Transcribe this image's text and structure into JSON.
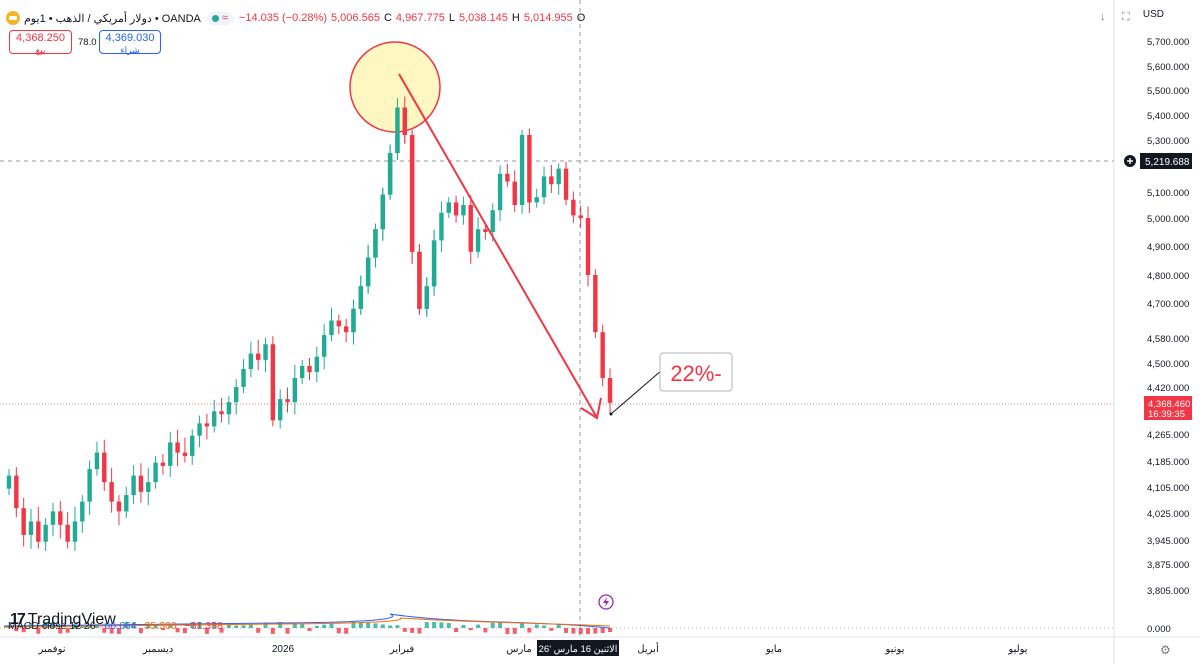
{
  "header": {
    "title": "دولار أمريكي / الذهب • 1يوم • OANDA",
    "change": "−14.035 (−0.28%)",
    "close_val": "5,006.565",
    "close_lab": "C",
    "low_val": "4,967.775",
    "low_lab": "L",
    "high_val": "5,038.145",
    "high_lab": "H",
    "open_val": "5,014.955",
    "open_lab": "O",
    "wave_icon": "≈"
  },
  "trade": {
    "sell_price": "4,368.250",
    "sell_label": "بيع",
    "spread": "78.0",
    "buy_price": "4,369.030",
    "buy_label": "شراء"
  },
  "currency": "USD",
  "toolbar_icons": [
    "download-arrow-icon",
    "fullscreen-icon"
  ],
  "price_axis": {
    "ticks": [
      {
        "v": 5700,
        "t": "5,700.000"
      },
      {
        "v": 5600,
        "t": "5,600.000"
      },
      {
        "v": 5500,
        "t": "5,500.000"
      },
      {
        "v": 5400,
        "t": "5,400.000"
      },
      {
        "v": 5300,
        "t": "5,300.000"
      },
      {
        "v": 5100,
        "t": "5,100.000"
      },
      {
        "v": 5000,
        "t": "5,000.000"
      },
      {
        "v": 4900,
        "t": "4,900.000"
      },
      {
        "v": 4800,
        "t": "4,800.000"
      },
      {
        "v": 4700,
        "t": "4,700.000"
      },
      {
        "v": 4580,
        "t": "4,580.000"
      },
      {
        "v": 4500,
        "t": "4,500.000"
      },
      {
        "v": 4420,
        "t": "4,420.000"
      },
      {
        "v": 4265,
        "t": "4,265.000"
      },
      {
        "v": 4185,
        "t": "4,185.000"
      },
      {
        "v": 4105,
        "t": "4,105.000"
      },
      {
        "v": 4025,
        "t": "4,025.000"
      },
      {
        "v": 3945,
        "t": "3,945.000"
      },
      {
        "v": 3875,
        "t": "3,875.000"
      },
      {
        "v": 3805,
        "t": "3,805.000"
      }
    ],
    "crosshair_price": "5,219.688",
    "last_price": "4,368.460",
    "countdown": "16:39:35",
    "macd_zero": "0.000"
  },
  "time_axis": {
    "labels": [
      "نوفمبر",
      "ديسمبر",
      "2026",
      "فبراير",
      "مارس",
      "أبريل",
      "مايو",
      "يونيو",
      "يوليو"
    ],
    "crosshair_date": "الاثنين 16 مارس '26"
  },
  "annotation": {
    "text": "22%-"
  },
  "logo": {
    "brand": "TradingView",
    "mark": "17"
  },
  "macd": {
    "name": "MACD close 12 26",
    "v1": "66.664",
    "v2": "35.306",
    "v3": "−31.358"
  },
  "colors": {
    "up": "#22ab94",
    "down": "#f23645",
    "accent": "#2962ff",
    "circle_fill": "#fff7c2"
  },
  "chart_data": {
    "type": "candlestick",
    "symbol": "دولار أمريكي / الذهب",
    "ohlc_close_pairs": [
      [
        4100,
        4140
      ],
      [
        4140,
        4040
      ],
      [
        4040,
        3960
      ],
      [
        3960,
        4000
      ],
      [
        4000,
        3940
      ],
      [
        3940,
        3990
      ],
      [
        3990,
        4030
      ],
      [
        4030,
        3990
      ],
      [
        3990,
        3940
      ],
      [
        3940,
        4000
      ],
      [
        4000,
        4060
      ],
      [
        4060,
        4160
      ],
      [
        4160,
        4210
      ],
      [
        4210,
        4120
      ],
      [
        4120,
        4060
      ],
      [
        4060,
        4030
      ],
      [
        4030,
        4080
      ],
      [
        4080,
        4140
      ],
      [
        4140,
        4090
      ],
      [
        4090,
        4120
      ],
      [
        4120,
        4180
      ],
      [
        4180,
        4170
      ],
      [
        4170,
        4240
      ],
      [
        4240,
        4210
      ],
      [
        4210,
        4200
      ],
      [
        4200,
        4260
      ],
      [
        4260,
        4300
      ],
      [
        4300,
        4290
      ],
      [
        4290,
        4340
      ],
      [
        4340,
        4330
      ],
      [
        4330,
        4370
      ],
      [
        4370,
        4420
      ],
      [
        4420,
        4480
      ],
      [
        4480,
        4530
      ],
      [
        4530,
        4510
      ],
      [
        4510,
        4560
      ],
      [
        4560,
        4310
      ],
      [
        4310,
        4380
      ],
      [
        4380,
        4370
      ],
      [
        4370,
        4450
      ],
      [
        4450,
        4490
      ],
      [
        4490,
        4470
      ],
      [
        4470,
        4520
      ],
      [
        4520,
        4590
      ],
      [
        4590,
        4640
      ],
      [
        4640,
        4620
      ],
      [
        4620,
        4600
      ],
      [
        4600,
        4680
      ],
      [
        4680,
        4760
      ],
      [
        4760,
        4860
      ],
      [
        4860,
        4960
      ],
      [
        4960,
        5090
      ],
      [
        5090,
        5250
      ],
      [
        5250,
        5430
      ],
      [
        5430,
        5320
      ],
      [
        5320,
        4880
      ],
      [
        4880,
        4680
      ],
      [
        4680,
        4760
      ],
      [
        4760,
        4920
      ],
      [
        4920,
        5020
      ],
      [
        5020,
        5060
      ],
      [
        5060,
        5010
      ],
      [
        5010,
        5050
      ],
      [
        5050,
        4880
      ],
      [
        4880,
        4960
      ],
      [
        4960,
        4950
      ],
      [
        4950,
        5030
      ],
      [
        5030,
        5170
      ],
      [
        5170,
        5140
      ],
      [
        5140,
        5050
      ],
      [
        5050,
        5320
      ],
      [
        5320,
        5060
      ],
      [
        5060,
        5080
      ],
      [
        5080,
        5160
      ],
      [
        5160,
        5130
      ],
      [
        5130,
        5190
      ],
      [
        5190,
        5070
      ],
      [
        5070,
        5010
      ],
      [
        5010,
        5000
      ],
      [
        5000,
        4800
      ],
      [
        4800,
        4600
      ],
      [
        4600,
        4450
      ],
      [
        4450,
        4368
      ]
    ],
    "xlabels": [
      "نوفمبر",
      "ديسمبر",
      "2026",
      "فبراير",
      "مارس",
      "أبريل",
      "مايو",
      "يونيو",
      "يوليو"
    ],
    "ylim": [
      3760,
      5780
    ],
    "last": 4368.46,
    "annotation": "22%-"
  }
}
